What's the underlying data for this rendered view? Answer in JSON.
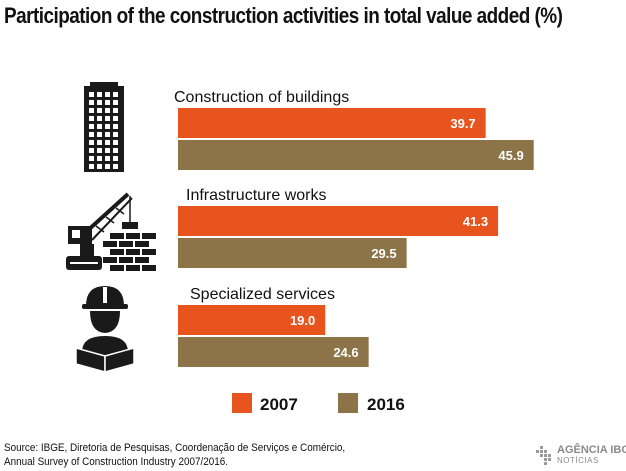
{
  "title": "Participation of the construction activities in total value added (%)",
  "colors": {
    "s2007": "#e8541e",
    "s2016": "#8c7348"
  },
  "icons": [
    "building-icon",
    "crane-brick-wall-icon",
    "construction-worker-icon"
  ],
  "chart_data": {
    "type": "bar",
    "orientation": "horizontal",
    "title": "Participation of the construction activities in total value added (%)",
    "categories": [
      "Construction of buildings",
      "Infrastructure works",
      "Specialized services"
    ],
    "series": [
      {
        "name": "2007",
        "values": [
          39.7,
          41.3,
          19.0
        ]
      },
      {
        "name": "2016",
        "values": [
          45.9,
          29.5,
          24.6
        ]
      }
    ],
    "value_labels": [
      [
        "39.7",
        "41.3",
        "19.0"
      ],
      [
        "45.9",
        "29.5",
        "24.6"
      ]
    ],
    "legend_position": "bottom",
    "grid": false
  },
  "source": {
    "line1": "Source: IBGE, Diretoria de Pesquisas, Coordenação de Serviços e Comércio,",
    "line2": "Annual Survey of Construction Industry 2007/2016."
  },
  "logo": {
    "line1": "AGÊNCIA IBGE",
    "line2": "NOTÍCIAS"
  }
}
